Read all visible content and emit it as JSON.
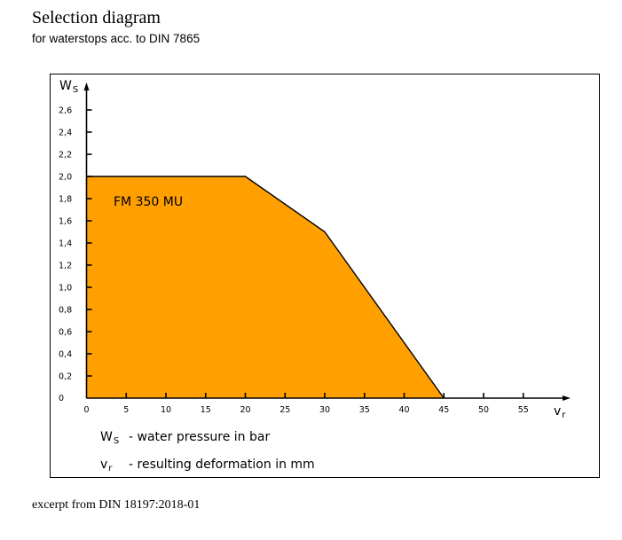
{
  "header": {
    "title": "Selection diagram",
    "subtitle": "for waterstops acc. to DIN 7865"
  },
  "footer": {
    "text": "excerpt from DIN 18197:2018-01"
  },
  "colors": {
    "fill": "#ff9f00",
    "stroke": "#000000"
  },
  "chart_data": {
    "type": "area",
    "xlabel": {
      "symbol": "v",
      "sub": "r"
    },
    "ylabel": {
      "symbol": "W",
      "sub": "S"
    },
    "xlim": [
      0,
      60
    ],
    "ylim": [
      0,
      2.8
    ],
    "x_ticks": [
      0,
      5,
      10,
      15,
      20,
      25,
      30,
      35,
      40,
      45,
      50,
      55
    ],
    "x_tick_labels": [
      "0",
      "5",
      "10",
      "15",
      "20",
      "25",
      "30",
      "35",
      "40",
      "45",
      "50",
      "55"
    ],
    "y_ticks": [
      0,
      0.2,
      0.4,
      0.6,
      0.8,
      1.0,
      1.2,
      1.4,
      1.6,
      1.8,
      2.0,
      2.2,
      2.4,
      2.6
    ],
    "y_tick_labels": [
      "0",
      "0,2",
      "0,4",
      "0,6",
      "0,8",
      "1,0",
      "1,2",
      "1,4",
      "1,6",
      "1,8",
      "2,0",
      "2,2",
      "2,4",
      "2,6"
    ],
    "series": [
      {
        "name": "FM 350 MU",
        "x": [
          0,
          20,
          30,
          45
        ],
        "y": [
          2.0,
          2.0,
          1.5,
          0
        ]
      }
    ],
    "grid": false,
    "legend": [
      {
        "symbol": "W",
        "sub": "S",
        "text": "- water pressure in bar"
      },
      {
        "symbol": "v",
        "sub": "r",
        "text": "- resulting deformation in mm"
      }
    ]
  }
}
